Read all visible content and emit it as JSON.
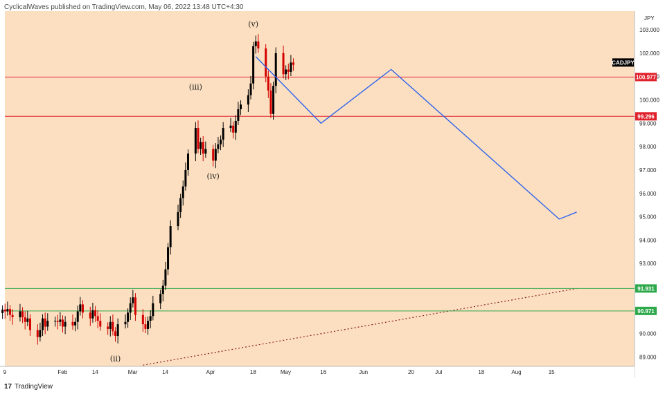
{
  "header": {
    "publisher": "CyclicalWaves published on TradingView.com, May 06, 2022 13:48 UTC+4:30"
  },
  "footer": {
    "brand": "TradingView",
    "logo": "17"
  },
  "colors": {
    "background": "#fbdfc0",
    "candle_up": "#000000",
    "candle_down": "#d40000",
    "resistance": "#e0202a",
    "support": "#2da84a",
    "projection": "#2f63ee",
    "trendline": "#8b1a1a"
  },
  "chart_data": {
    "type": "candlestick",
    "symbol": "CADJPY",
    "currency": "JPY",
    "ylim": [
      88.6,
      103.8
    ],
    "y_ticks": [
      "89.000",
      "90.000",
      "91.000",
      "92.000",
      "93.000",
      "94.000",
      "95.000",
      "96.000",
      "97.000",
      "98.000",
      "99.000",
      "100.000",
      "101.000",
      "102.000",
      "103.000"
    ],
    "x_ticks": [
      "9",
      "Feb",
      "14",
      "Mar",
      "14",
      "Apr",
      "18",
      "May",
      "16",
      "Jun",
      "20",
      "Jul",
      "18",
      "Aug",
      "15"
    ],
    "horizontal_levels": [
      {
        "value": 100.977,
        "label": "100.977",
        "role": "resistance"
      },
      {
        "value": 99.296,
        "label": "99.296",
        "role": "resistance"
      },
      {
        "value": 91.931,
        "label": "91.931",
        "role": "support"
      },
      {
        "value": 90.971,
        "label": "90.971",
        "role": "support"
      }
    ],
    "wave_labels": [
      {
        "label": "(ii)",
        "date": "2022-02-24",
        "price": 89.3
      },
      {
        "label": "(iii)",
        "date": "2022-03-28",
        "price": 100.2
      },
      {
        "label": "(iv)",
        "date": "2022-04-04",
        "price": 97.1
      },
      {
        "label": "(v)",
        "date": "2022-04-20",
        "price": 102.9
      }
    ],
    "projection_path": [
      {
        "date": "2022-04-21",
        "price": 101.85
      },
      {
        "date": "2022-05-17",
        "price": 99.0
      },
      {
        "date": "2022-06-14",
        "price": 101.3
      },
      {
        "date": "2022-08-20",
        "price": 94.9
      },
      {
        "date": "2022-08-27",
        "price": 95.2
      }
    ],
    "trendline": [
      {
        "date": "2022-03-07",
        "price": 88.65
      },
      {
        "date": "2022-08-27",
        "price": 91.931
      }
    ],
    "closes": [
      [
        "2022-01-10",
        91.03
      ],
      [
        "2022-01-11",
        90.95
      ],
      [
        "2022-01-12",
        91.05
      ],
      [
        "2022-01-13",
        90.8
      ],
      [
        "2022-01-14",
        90.7
      ],
      [
        "2022-01-17",
        90.95
      ],
      [
        "2022-01-18",
        90.7
      ],
      [
        "2022-01-19",
        90.5
      ],
      [
        "2022-01-20",
        90.65
      ],
      [
        "2022-01-21",
        90.15
      ],
      [
        "2022-01-24",
        89.85
      ],
      [
        "2022-01-25",
        90.15
      ],
      [
        "2022-01-26",
        90.65
      ],
      [
        "2022-01-27",
        90.3
      ],
      [
        "2022-01-28",
        90.55
      ],
      [
        "2022-01-31",
        90.55
      ],
      [
        "2022-02-01",
        90.5
      ],
      [
        "2022-02-02",
        90.6
      ],
      [
        "2022-02-03",
        90.3
      ],
      [
        "2022-02-04",
        90.5
      ],
      [
        "2022-02-07",
        90.35
      ],
      [
        "2022-02-08",
        90.5
      ],
      [
        "2022-02-09",
        90.95
      ],
      [
        "2022-02-10",
        91.25
      ],
      [
        "2022-02-11",
        90.9
      ],
      [
        "2022-02-14",
        90.65
      ],
      [
        "2022-02-15",
        91.0
      ],
      [
        "2022-02-16",
        90.75
      ],
      [
        "2022-02-17",
        90.55
      ],
      [
        "2022-02-18",
        90.3
      ],
      [
        "2022-02-21",
        90.2
      ],
      [
        "2022-02-22",
        90.5
      ],
      [
        "2022-02-23",
        90.1
      ],
      [
        "2022-02-24",
        89.9
      ],
      [
        "2022-02-25",
        90.4
      ],
      [
        "2022-02-28",
        90.5
      ],
      [
        "2022-03-01",
        90.9
      ],
      [
        "2022-03-02",
        91.3
      ],
      [
        "2022-03-03",
        91.55
      ],
      [
        "2022-03-04",
        90.8
      ],
      [
        "2022-03-07",
        90.4
      ],
      [
        "2022-03-08",
        90.2
      ],
      [
        "2022-03-09",
        90.55
      ],
      [
        "2022-03-10",
        90.75
      ],
      [
        "2022-03-11",
        91.3
      ],
      [
        "2022-03-14",
        91.7
      ],
      [
        "2022-03-15",
        92.05
      ],
      [
        "2022-03-16",
        92.75
      ],
      [
        "2022-03-17",
        93.7
      ],
      [
        "2022-03-18",
        94.6
      ],
      [
        "2022-03-21",
        95.2
      ],
      [
        "2022-03-22",
        95.8
      ],
      [
        "2022-03-23",
        96.3
      ],
      [
        "2022-03-24",
        97.0
      ],
      [
        "2022-03-25",
        97.7
      ],
      [
        "2022-03-28",
        98.8
      ],
      [
        "2022-03-29",
        97.9
      ],
      [
        "2022-03-30",
        98.2
      ],
      [
        "2022-03-31",
        97.7
      ],
      [
        "2022-04-01",
        97.9
      ],
      [
        "2022-04-04",
        97.4
      ],
      [
        "2022-04-05",
        97.9
      ],
      [
        "2022-04-06",
        98.1
      ],
      [
        "2022-04-07",
        98.3
      ],
      [
        "2022-04-08",
        98.8
      ],
      [
        "2022-04-11",
        98.9
      ],
      [
        "2022-04-12",
        98.6
      ],
      [
        "2022-04-13",
        99.1
      ],
      [
        "2022-04-14",
        99.6
      ],
      [
        "2022-04-15",
        99.8
      ],
      [
        "2022-04-18",
        100.2
      ],
      [
        "2022-04-19",
        100.7
      ],
      [
        "2022-04-20",
        102.3
      ],
      [
        "2022-04-21",
        102.5
      ],
      [
        "2022-04-22",
        102.2
      ],
      [
        "2022-04-25",
        101.0
      ],
      [
        "2022-04-26",
        100.4
      ],
      [
        "2022-04-27",
        99.4
      ],
      [
        "2022-04-28",
        100.6
      ],
      [
        "2022-04-29",
        102.0
      ],
      [
        "2022-05-02",
        101.1
      ],
      [
        "2022-05-03",
        101.3
      ],
      [
        "2022-05-04",
        101.2
      ],
      [
        "2022-05-05",
        101.6
      ],
      [
        "2022-05-06",
        101.5
      ]
    ]
  }
}
